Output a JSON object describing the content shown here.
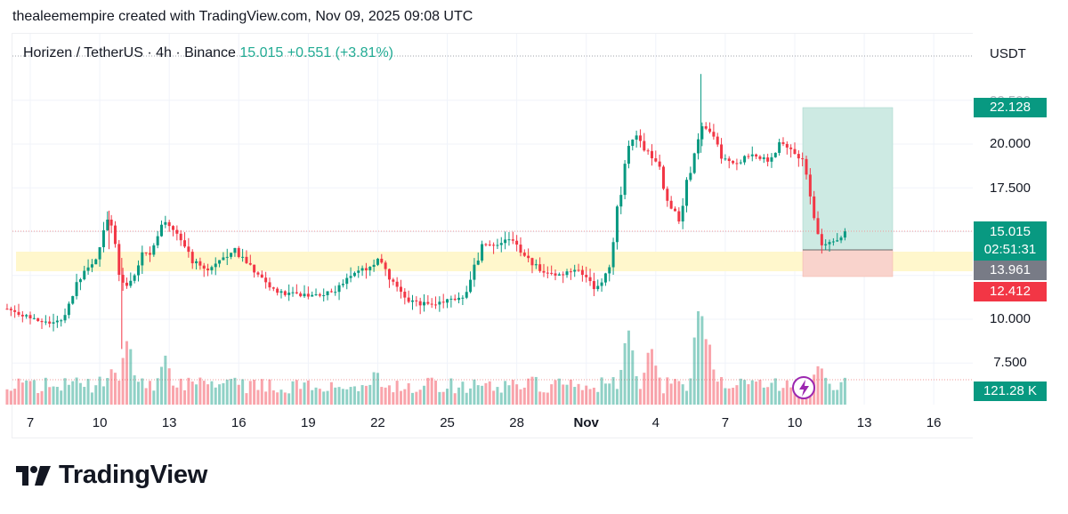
{
  "attribution": "thealeemempire created with TradingView.com, Nov 09, 2025 09:08 UTC",
  "legend": {
    "symbol": "Horizen / TetherUS · 4h · Binance",
    "last": "15.015",
    "change": "+0.551",
    "change_pct": "(+3.81%)"
  },
  "currency": "USDT",
  "price_labels": {
    "target": "22.128",
    "last": "15.015",
    "countdown": "02:51:31",
    "entry": "13.961",
    "stop": "12.412",
    "volume": "121.28 K"
  },
  "footer": {
    "brand": "TradingView"
  },
  "colors": {
    "up": "#089981",
    "down": "#f23645",
    "zone": "#fff7cc",
    "target_zone": "#cdeae3",
    "stop_zone": "#f9d3cc",
    "lightning": "#9c27b0"
  },
  "chart_data": {
    "type": "candlestick",
    "symbol": "Horizen / TetherUS",
    "interval": "4h",
    "exchange": "Binance",
    "y_axis": {
      "ticks": [
        10.0,
        12.5,
        15.0,
        17.5,
        20.0
      ],
      "tick_labels": [
        "10.000",
        "17.500",
        "20.000"
      ],
      "ylim": [
        8.0,
        24.5
      ]
    },
    "x_axis": {
      "tick_labels": [
        "7",
        "10",
        "13",
        "16",
        "19",
        "22",
        "25",
        "28",
        "Nov",
        "4",
        "7",
        "10",
        "13",
        "16"
      ]
    },
    "extra_y_label": "7.500",
    "support_zone": [
      13.2,
      14.3
    ],
    "position": {
      "type": "long",
      "entry": 13.961,
      "target": 22.128,
      "stop": 12.412
    },
    "last_price": 15.015,
    "close_path": [
      {
        "day": 6.0,
        "price": 10.6
      },
      {
        "day": 6.8,
        "price": 10.2
      },
      {
        "day": 7.5,
        "price": 9.9
      },
      {
        "day": 8.3,
        "price": 9.8
      },
      {
        "day": 8.8,
        "price": 11.3
      },
      {
        "day": 9.3,
        "price": 12.7
      },
      {
        "day": 9.8,
        "price": 13.2
      },
      {
        "day": 10.1,
        "price": 15.2
      },
      {
        "day": 10.4,
        "price": 15.8
      },
      {
        "day": 10.7,
        "price": 14.5
      },
      {
        "day": 11.0,
        "price": 11.5
      },
      {
        "day": 11.3,
        "price": 12.2
      },
      {
        "day": 11.7,
        "price": 13.8
      },
      {
        "day": 12.2,
        "price": 13.6
      },
      {
        "day": 12.6,
        "price": 15.8
      },
      {
        "day": 13.0,
        "price": 15.2
      },
      {
        "day": 13.4,
        "price": 14.8
      },
      {
        "day": 14.0,
        "price": 13.4
      },
      {
        "day": 14.6,
        "price": 12.8
      },
      {
        "day": 15.2,
        "price": 13.3
      },
      {
        "day": 15.8,
        "price": 14.0
      },
      {
        "day": 16.4,
        "price": 13.2
      },
      {
        "day": 17.0,
        "price": 12.1
      },
      {
        "day": 17.8,
        "price": 11.5
      },
      {
        "day": 18.6,
        "price": 11.4
      },
      {
        "day": 19.4,
        "price": 11.4
      },
      {
        "day": 20.2,
        "price": 11.6
      },
      {
        "day": 21.0,
        "price": 12.8
      },
      {
        "day": 21.6,
        "price": 12.9
      },
      {
        "day": 22.0,
        "price": 13.4
      },
      {
        "day": 22.6,
        "price": 12.3
      },
      {
        "day": 23.2,
        "price": 11.1
      },
      {
        "day": 23.8,
        "price": 10.9
      },
      {
        "day": 24.4,
        "price": 10.9
      },
      {
        "day": 25.2,
        "price": 11.1
      },
      {
        "day": 25.8,
        "price": 11.3
      },
      {
        "day": 26.2,
        "price": 13.2
      },
      {
        "day": 26.6,
        "price": 14.2
      },
      {
        "day": 27.2,
        "price": 14.3
      },
      {
        "day": 27.7,
        "price": 14.6
      },
      {
        "day": 28.2,
        "price": 13.7
      },
      {
        "day": 28.7,
        "price": 13.2
      },
      {
        "day": 29.3,
        "price": 12.6
      },
      {
        "day": 29.9,
        "price": 12.5
      },
      {
        "day": 30.5,
        "price": 12.9
      },
      {
        "day": 31.0,
        "price": 12.4
      },
      {
        "day": 31.3,
        "price": 11.5
      },
      {
        "day": 31.7,
        "price": 12.2
      },
      {
        "day": 32.0,
        "price": 13.2
      },
      {
        "day": 32.3,
        "price": 15.5
      },
      {
        "day": 32.6,
        "price": 18.5
      },
      {
        "day": 33.0,
        "price": 20.7
      },
      {
        "day": 33.5,
        "price": 19.8
      },
      {
        "day": 34.0,
        "price": 18.9
      },
      {
        "day": 34.6,
        "price": 16.5
      },
      {
        "day": 35.0,
        "price": 15.8
      },
      {
        "day": 35.4,
        "price": 17.8
      },
      {
        "day": 35.9,
        "price": 21.2
      },
      {
        "day": 36.4,
        "price": 20.5
      },
      {
        "day": 36.9,
        "price": 19.2
      },
      {
        "day": 37.4,
        "price": 18.8
      },
      {
        "day": 37.9,
        "price": 19.3
      },
      {
        "day": 38.4,
        "price": 19.3
      },
      {
        "day": 38.9,
        "price": 19.0
      },
      {
        "day": 39.4,
        "price": 20.2
      },
      {
        "day": 39.9,
        "price": 19.6
      },
      {
        "day": 40.4,
        "price": 19.0
      },
      {
        "day": 40.7,
        "price": 17.0
      },
      {
        "day": 41.0,
        "price": 14.6
      },
      {
        "day": 41.3,
        "price": 14.2
      },
      {
        "day": 41.6,
        "price": 14.5
      },
      {
        "day": 41.9,
        "price": 14.6
      },
      {
        "day": 42.2,
        "price": 15.015
      }
    ],
    "volume_path": [
      {
        "day": 10.5,
        "volume": 0.35
      },
      {
        "day": 11.2,
        "volume": 0.65
      },
      {
        "day": 12.8,
        "volume": 0.45
      },
      {
        "day": 21.9,
        "volume": 0.3
      },
      {
        "day": 32.8,
        "volume": 0.75
      },
      {
        "day": 33.8,
        "volume": 0.55
      },
      {
        "day": 35.9,
        "volume": 1.0
      },
      {
        "day": 36.2,
        "volume": 0.7
      },
      {
        "day": 41.0,
        "volume": 0.4
      },
      {
        "day": 42.2,
        "volume": 0.25
      }
    ]
  }
}
